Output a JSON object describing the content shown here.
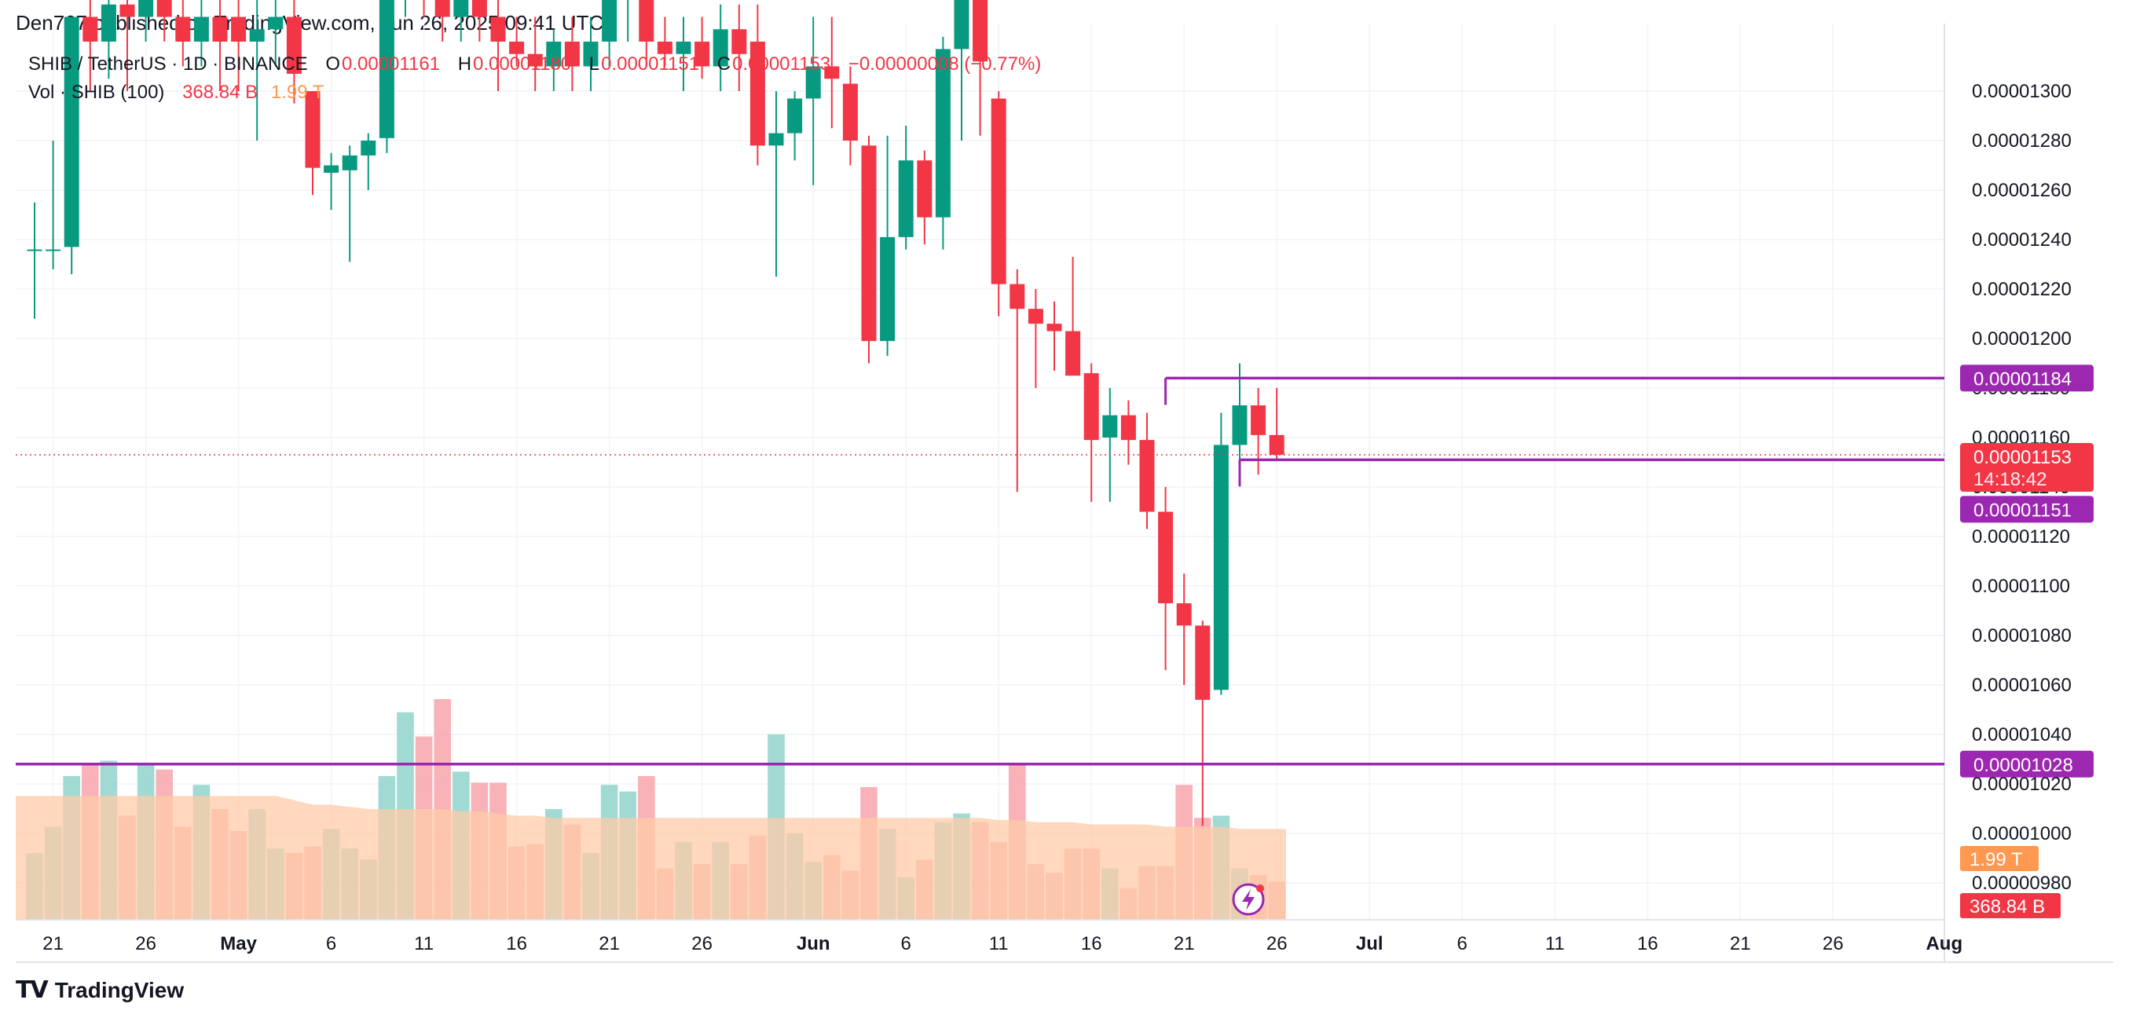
{
  "header": {
    "published": "Den767 published on TradingView.com, Jun 26, 2025 09:41 UTC"
  },
  "legend": {
    "symbol": "SHIB / TetherUS · 1D · BINANCE",
    "o_label": "O",
    "o_value": "0.00001161",
    "h_label": "H",
    "h_value": "0.00001180",
    "l_label": "L",
    "l_value": "0.00001151",
    "c_label": "C",
    "c_value": "0.00001153",
    "change": "−0.00000008 (−0.77%)",
    "vol_label": "Vol · SHIB (100)",
    "vol_value": "368.84 B",
    "vol_ma_value": "1.99 T"
  },
  "footer": {
    "brand": "TradingView",
    "logo": "tradingview-logo-icon"
  },
  "colors": {
    "up": "#089981",
    "down": "#f23645",
    "level": "#9c27b0",
    "vol_up": "#8fd4cb",
    "vol_down": "#f7a5ab",
    "vol_ma": "#ffcba8",
    "grid": "#f0f3fa",
    "volume_tag": "#ff9850",
    "last_price_line": "#f23645"
  },
  "chart_data": {
    "type": "candlestick",
    "symbol": "SHIB / TetherUS",
    "timeframe": "1D",
    "exchange": "BINANCE",
    "price_axis": {
      "ticks": [
        "0.00001300",
        "0.00001280",
        "0.00001260",
        "0.00001240",
        "0.00001220",
        "0.00001200",
        "0.00001180",
        "0.00001160",
        "0.00001140",
        "0.00001120",
        "0.00001100",
        "0.00001080",
        "0.00001060",
        "0.00001040",
        "0.00001020",
        "0.00001000",
        "0.00000980"
      ],
      "ylim": [
        9.7e-06,
        1.314e-05
      ]
    },
    "time_axis": {
      "ticks": [
        {
          "label": "21",
          "bold": false,
          "date": "2025-04-21"
        },
        {
          "label": "26",
          "bold": false,
          "date": "2025-04-26"
        },
        {
          "label": "May",
          "bold": true,
          "date": "2025-05-01"
        },
        {
          "label": "6",
          "bold": false,
          "date": "2025-05-06"
        },
        {
          "label": "11",
          "bold": false,
          "date": "2025-05-11"
        },
        {
          "label": "16",
          "bold": false,
          "date": "2025-05-16"
        },
        {
          "label": "21",
          "bold": false,
          "date": "2025-05-21"
        },
        {
          "label": "26",
          "bold": false,
          "date": "2025-05-26"
        },
        {
          "label": "Jun",
          "bold": true,
          "date": "2025-06-01"
        },
        {
          "label": "6",
          "bold": false,
          "date": "2025-06-06"
        },
        {
          "label": "11",
          "bold": false,
          "date": "2025-06-11"
        },
        {
          "label": "16",
          "bold": false,
          "date": "2025-06-16"
        },
        {
          "label": "21",
          "bold": false,
          "date": "2025-06-21"
        },
        {
          "label": "26",
          "bold": false,
          "date": "2025-06-26"
        },
        {
          "label": "Jul",
          "bold": true,
          "date": "2025-07-01"
        },
        {
          "label": "6",
          "bold": false,
          "date": "2025-07-06"
        },
        {
          "label": "11",
          "bold": false,
          "date": "2025-07-11"
        },
        {
          "label": "16",
          "bold": false,
          "date": "2025-07-16"
        },
        {
          "label": "21",
          "bold": false,
          "date": "2025-07-21"
        },
        {
          "label": "26",
          "bold": false,
          "date": "2025-07-26"
        },
        {
          "label": "Aug",
          "bold": true,
          "date": "2025-08-01"
        }
      ]
    },
    "candles": [
      {
        "date": "2025-04-20",
        "o": 1.236e-05,
        "h": 1.255e-05,
        "l": 1.208e-05,
        "c": 1.236e-05,
        "vol": 0.3
      },
      {
        "date": "2025-04-21",
        "o": 1.236e-05,
        "h": 1.28e-05,
        "l": 1.228e-05,
        "c": 1.236e-05,
        "vol": 0.42
      },
      {
        "date": "2025-04-22",
        "o": 1.237e-05,
        "h": 1.33e-05,
        "l": 1.226e-05,
        "c": 1.33e-05,
        "vol": 0.65
      },
      {
        "date": "2025-04-23",
        "o": 1.33e-05,
        "h": 1.34e-05,
        "l": 1.3e-05,
        "c": 1.32e-05,
        "vol": 0.7
      },
      {
        "date": "2025-04-24",
        "o": 1.32e-05,
        "h": 1.34e-05,
        "l": 1.305e-05,
        "c": 1.335e-05,
        "vol": 0.72
      },
      {
        "date": "2025-04-25",
        "o": 1.335e-05,
        "h": 1.345e-05,
        "l": 1.3e-05,
        "c": 1.33e-05,
        "vol": 0.47
      },
      {
        "date": "2025-04-26",
        "o": 1.33e-05,
        "h": 1.345e-05,
        "l": 1.32e-05,
        "c": 1.34e-05,
        "vol": 0.7
      },
      {
        "date": "2025-04-27",
        "o": 1.34e-05,
        "h": 1.345e-05,
        "l": 1.32e-05,
        "c": 1.33e-05,
        "vol": 0.68
      },
      {
        "date": "2025-04-28",
        "o": 1.33e-05,
        "h": 1.34e-05,
        "l": 1.31e-05,
        "c": 1.32e-05,
        "vol": 0.42
      },
      {
        "date": "2025-04-29",
        "o": 1.32e-05,
        "h": 1.345e-05,
        "l": 1.31e-05,
        "c": 1.33e-05,
        "vol": 0.61
      },
      {
        "date": "2025-04-30",
        "o": 1.33e-05,
        "h": 1.345e-05,
        "l": 1.3e-05,
        "c": 1.32e-05,
        "vol": 0.5
      },
      {
        "date": "2025-05-01",
        "o": 1.33e-05,
        "h": 1.345e-05,
        "l": 1.3e-05,
        "c": 1.32e-05,
        "vol": 0.4
      },
      {
        "date": "2025-05-02",
        "o": 1.32e-05,
        "h": 1.34e-05,
        "l": 1.28e-05,
        "c": 1.325e-05,
        "vol": 0.5
      },
      {
        "date": "2025-05-03",
        "o": 1.325e-05,
        "h": 1.345e-05,
        "l": 1.31e-05,
        "c": 1.33e-05,
        "vol": 0.32
      },
      {
        "date": "2025-05-04",
        "o": 1.33e-05,
        "h": 1.345e-05,
        "l": 1.295e-05,
        "c": 1.307e-05,
        "vol": 0.3
      },
      {
        "date": "2025-05-05",
        "o": 1.3e-05,
        "h": 1.3e-05,
        "l": 1.258e-05,
        "c": 1.269e-05,
        "vol": 0.33
      },
      {
        "date": "2025-05-06",
        "o": 1.267e-05,
        "h": 1.275e-05,
        "l": 1.252e-05,
        "c": 1.27e-05,
        "vol": 0.41
      },
      {
        "date": "2025-05-07",
        "o": 1.268e-05,
        "h": 1.278e-05,
        "l": 1.231e-05,
        "c": 1.274e-05,
        "vol": 0.32
      },
      {
        "date": "2025-05-08",
        "o": 1.274e-05,
        "h": 1.283e-05,
        "l": 1.26e-05,
        "c": 1.28e-05,
        "vol": 0.27
      },
      {
        "date": "2025-05-09",
        "o": 1.281e-05,
        "h": 1.35e-05,
        "l": 1.275e-05,
        "c": 1.35e-05,
        "vol": 0.65
      },
      {
        "date": "2025-05-10",
        "o": 1.35e-05,
        "h": 1.36e-05,
        "l": 1.33e-05,
        "c": 1.355e-05,
        "vol": 0.94
      },
      {
        "date": "2025-05-11",
        "o": 1.355e-05,
        "h": 1.36e-05,
        "l": 1.33e-05,
        "c": 1.34e-05,
        "vol": 0.83
      },
      {
        "date": "2025-05-12",
        "o": 1.34e-05,
        "h": 1.36e-05,
        "l": 1.32e-05,
        "c": 1.33e-05,
        "vol": 1.0
      },
      {
        "date": "2025-05-13",
        "o": 1.33e-05,
        "h": 1.35e-05,
        "l": 1.32e-05,
        "c": 1.34e-05,
        "vol": 0.67
      },
      {
        "date": "2025-05-14",
        "o": 1.34e-05,
        "h": 1.345e-05,
        "l": 1.32e-05,
        "c": 1.33e-05,
        "vol": 0.62
      },
      {
        "date": "2025-05-15",
        "o": 1.33e-05,
        "h": 1.34e-05,
        "l": 1.3e-05,
        "c": 1.32e-05,
        "vol": 0.62
      },
      {
        "date": "2025-05-16",
        "o": 1.32e-05,
        "h": 1.33e-05,
        "l": 1.31e-05,
        "c": 1.315e-05,
        "vol": 0.33
      },
      {
        "date": "2025-05-17",
        "o": 1.315e-05,
        "h": 1.33e-05,
        "l": 1.3e-05,
        "c": 1.31e-05,
        "vol": 0.34
      },
      {
        "date": "2025-05-18",
        "o": 1.31e-05,
        "h": 1.325e-05,
        "l": 1.3e-05,
        "c": 1.32e-05,
        "vol": 0.5
      },
      {
        "date": "2025-05-19",
        "o": 1.32e-05,
        "h": 1.33e-05,
        "l": 1.3e-05,
        "c": 1.31e-05,
        "vol": 0.43
      },
      {
        "date": "2025-05-20",
        "o": 1.31e-05,
        "h": 1.33e-05,
        "l": 1.3e-05,
        "c": 1.32e-05,
        "vol": 0.3
      },
      {
        "date": "2025-05-21",
        "o": 1.32e-05,
        "h": 1.345e-05,
        "l": 1.31e-05,
        "c": 1.34e-05,
        "vol": 0.61
      },
      {
        "date": "2025-05-22",
        "o": 1.34e-05,
        "h": 1.35e-05,
        "l": 1.32e-05,
        "c": 1.345e-05,
        "vol": 0.58
      },
      {
        "date": "2025-05-23",
        "o": 1.345e-05,
        "h": 1.35e-05,
        "l": 1.31e-05,
        "c": 1.32e-05,
        "vol": 0.65
      },
      {
        "date": "2025-05-24",
        "o": 1.32e-05,
        "h": 1.33e-05,
        "l": 1.31e-05,
        "c": 1.315e-05,
        "vol": 0.23
      },
      {
        "date": "2025-05-25",
        "o": 1.315e-05,
        "h": 1.33e-05,
        "l": 1.3e-05,
        "c": 1.32e-05,
        "vol": 0.35
      },
      {
        "date": "2025-05-26",
        "o": 1.32e-05,
        "h": 1.33e-05,
        "l": 1.305e-05,
        "c": 1.31e-05,
        "vol": 0.25
      },
      {
        "date": "2025-05-27",
        "o": 1.31e-05,
        "h": 1.335e-05,
        "l": 1.3e-05,
        "c": 1.325e-05,
        "vol": 0.35
      },
      {
        "date": "2025-05-28",
        "o": 1.325e-05,
        "h": 1.335e-05,
        "l": 1.3e-05,
        "c": 1.315e-05,
        "vol": 0.25
      },
      {
        "date": "2025-05-29",
        "o": 1.32e-05,
        "h": 1.335e-05,
        "l": 1.27e-05,
        "c": 1.278e-05,
        "vol": 0.38
      },
      {
        "date": "2025-05-30",
        "o": 1.278e-05,
        "h": 1.3e-05,
        "l": 1.225e-05,
        "c": 1.283e-05,
        "vol": 0.84
      },
      {
        "date": "2025-05-31",
        "o": 1.283e-05,
        "h": 1.3e-05,
        "l": 1.272e-05,
        "c": 1.297e-05,
        "vol": 0.39
      },
      {
        "date": "2025-06-01",
        "o": 1.297e-05,
        "h": 1.33e-05,
        "l": 1.262e-05,
        "c": 1.31e-05,
        "vol": 0.26
      },
      {
        "date": "2025-06-02",
        "o": 1.31e-05,
        "h": 1.33e-05,
        "l": 1.285e-05,
        "c": 1.305e-05,
        "vol": 0.29
      },
      {
        "date": "2025-06-03",
        "o": 1.303e-05,
        "h": 1.31e-05,
        "l": 1.27e-05,
        "c": 1.28e-05,
        "vol": 0.22
      },
      {
        "date": "2025-06-04",
        "o": 1.278e-05,
        "h": 1.282e-05,
        "l": 1.19e-05,
        "c": 1.199e-05,
        "vol": 0.6
      },
      {
        "date": "2025-06-05",
        "o": 1.199e-05,
        "h": 1.282e-05,
        "l": 1.193e-05,
        "c": 1.241e-05,
        "vol": 0.41
      },
      {
        "date": "2025-06-06",
        "o": 1.241e-05,
        "h": 1.286e-05,
        "l": 1.236e-05,
        "c": 1.272e-05,
        "vol": 0.19
      },
      {
        "date": "2025-06-07",
        "o": 1.272e-05,
        "h": 1.276e-05,
        "l": 1.238e-05,
        "c": 1.249e-05,
        "vol": 0.27
      },
      {
        "date": "2025-06-08",
        "o": 1.249e-05,
        "h": 1.322e-05,
        "l": 1.236e-05,
        "c": 1.317e-05,
        "vol": 0.44
      },
      {
        "date": "2025-06-09",
        "o": 1.317e-05,
        "h": 1.34e-05,
        "l": 1.28e-05,
        "c": 1.34e-05,
        "vol": 0.48
      },
      {
        "date": "2025-06-10",
        "o": 1.34e-05,
        "h": 1.342e-05,
        "l": 1.282e-05,
        "c": 1.312e-05,
        "vol": 0.44
      },
      {
        "date": "2025-06-11",
        "o": 1.297e-05,
        "h": 1.3e-05,
        "l": 1.209e-05,
        "c": 1.222e-05,
        "vol": 0.35
      },
      {
        "date": "2025-06-12",
        "o": 1.222e-05,
        "h": 1.228e-05,
        "l": 1.138e-05,
        "c": 1.212e-05,
        "vol": 0.71
      },
      {
        "date": "2025-06-13",
        "o": 1.212e-05,
        "h": 1.22e-05,
        "l": 1.18e-05,
        "c": 1.206e-05,
        "vol": 0.25
      },
      {
        "date": "2025-06-14",
        "o": 1.206e-05,
        "h": 1.215e-05,
        "l": 1.187e-05,
        "c": 1.203e-05,
        "vol": 0.21
      },
      {
        "date": "2025-06-15",
        "o": 1.203e-05,
        "h": 1.233e-05,
        "l": 1.185e-05,
        "c": 1.185e-05,
        "vol": 0.32
      },
      {
        "date": "2025-06-16",
        "o": 1.186e-05,
        "h": 1.19e-05,
        "l": 1.134e-05,
        "c": 1.159e-05,
        "vol": 0.32
      },
      {
        "date": "2025-06-17",
        "o": 1.16e-05,
        "h": 1.18e-05,
        "l": 1.134e-05,
        "c": 1.169e-05,
        "vol": 0.23
      },
      {
        "date": "2025-06-18",
        "o": 1.169e-05,
        "h": 1.175e-05,
        "l": 1.149e-05,
        "c": 1.159e-05,
        "vol": 0.14
      },
      {
        "date": "2025-06-19",
        "o": 1.159e-05,
        "h": 1.17e-05,
        "l": 1.123e-05,
        "c": 1.13e-05,
        "vol": 0.24
      },
      {
        "date": "2025-06-20",
        "o": 1.13e-05,
        "h": 1.14e-05,
        "l": 1.066e-05,
        "c": 1.093e-05,
        "vol": 0.24
      },
      {
        "date": "2025-06-21",
        "o": 1.093e-05,
        "h": 1.105e-05,
        "l": 1.06e-05,
        "c": 1.084e-05,
        "vol": 0.61
      },
      {
        "date": "2025-06-22",
        "o": 1.084e-05,
        "h": 1.086e-05,
        "l": 1.003e-05,
        "c": 1.054e-05,
        "vol": 0.46
      },
      {
        "date": "2025-06-23",
        "o": 1.058e-05,
        "h": 1.17e-05,
        "l": 1.056e-05,
        "c": 1.157e-05,
        "vol": 0.47
      },
      {
        "date": "2025-06-24",
        "o": 1.157e-05,
        "h": 1.19e-05,
        "l": 1.15e-05,
        "c": 1.173e-05,
        "vol": 0.23
      },
      {
        "date": "2025-06-25",
        "o": 1.173e-05,
        "h": 1.18e-05,
        "l": 1.145e-05,
        "c": 1.161e-05,
        "vol": 0.2
      },
      {
        "date": "2025-06-26",
        "o": 1.161e-05,
        "h": 1.18e-05,
        "l": 1.151e-05,
        "c": 1.153e-05,
        "vol": 0.17
      }
    ],
    "volume_ma": [
      0.56,
      0.56,
      0.56,
      0.56,
      0.56,
      0.56,
      0.56,
      0.56,
      0.56,
      0.56,
      0.56,
      0.56,
      0.56,
      0.56,
      0.54,
      0.52,
      0.52,
      0.51,
      0.5,
      0.5,
      0.5,
      0.5,
      0.5,
      0.49,
      0.49,
      0.48,
      0.47,
      0.47,
      0.46,
      0.46,
      0.46,
      0.46,
      0.46,
      0.46,
      0.46,
      0.46,
      0.46,
      0.46,
      0.46,
      0.46,
      0.46,
      0.46,
      0.46,
      0.46,
      0.46,
      0.46,
      0.46,
      0.46,
      0.46,
      0.46,
      0.46,
      0.46,
      0.45,
      0.45,
      0.44,
      0.44,
      0.44,
      0.43,
      0.43,
      0.43,
      0.43,
      0.42,
      0.42,
      0.42,
      0.42,
      0.41,
      0.41,
      0.41
    ],
    "levels": [
      {
        "price": 1.184e-05,
        "label": "0.00001184",
        "start_date": "2025-06-20"
      },
      {
        "price": 1.151e-05,
        "label": "0.00001151",
        "start_date": "2025-06-24"
      },
      {
        "price": 1.028e-05,
        "label": "0.00001028",
        "start_date": "2025-04-19"
      }
    ],
    "last_price": {
      "price": 1.153e-05,
      "label": "0.00001153",
      "countdown": "14:18:42"
    },
    "volume_tags": {
      "ma": "1.99 T",
      "last": "368.84 B"
    }
  }
}
